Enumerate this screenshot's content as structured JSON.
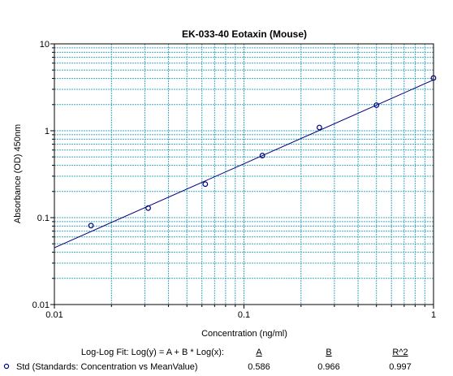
{
  "chart_data": {
    "type": "scatter",
    "title": "EK-033-40 Eotaxin (Mouse)",
    "xlabel": "Concentration (ng/ml)",
    "ylabel": "Absorbance (OD) 450nm",
    "x_scale": "log",
    "y_scale": "log",
    "xlim": [
      0.01,
      1
    ],
    "ylim": [
      0.01,
      10
    ],
    "x_ticks": [
      "0.01",
      "0.1",
      "1"
    ],
    "y_ticks": [
      "0.01",
      "0.1",
      "1",
      "10"
    ],
    "grid": true,
    "series": [
      {
        "name": "Std (Standards: Concentration vs MeanValue)",
        "x": [
          0.0156,
          0.03125,
          0.0625,
          0.125,
          0.25,
          0.5,
          1
        ],
        "y": [
          0.081,
          0.129,
          0.243,
          0.518,
          1.09,
          1.97,
          4.05
        ]
      }
    ],
    "fit": {
      "label": "Log-Log Fit: Log(y) = A + B * Log(x):",
      "headers": [
        "A",
        "B",
        "R^2"
      ],
      "values": [
        "0.586",
        "0.966",
        "0.997"
      ],
      "A": 0.586,
      "B": 0.966
    },
    "colors": {
      "grid": "#3fa9c4",
      "marker": "#00007f",
      "fit_line": "#00007f"
    }
  }
}
